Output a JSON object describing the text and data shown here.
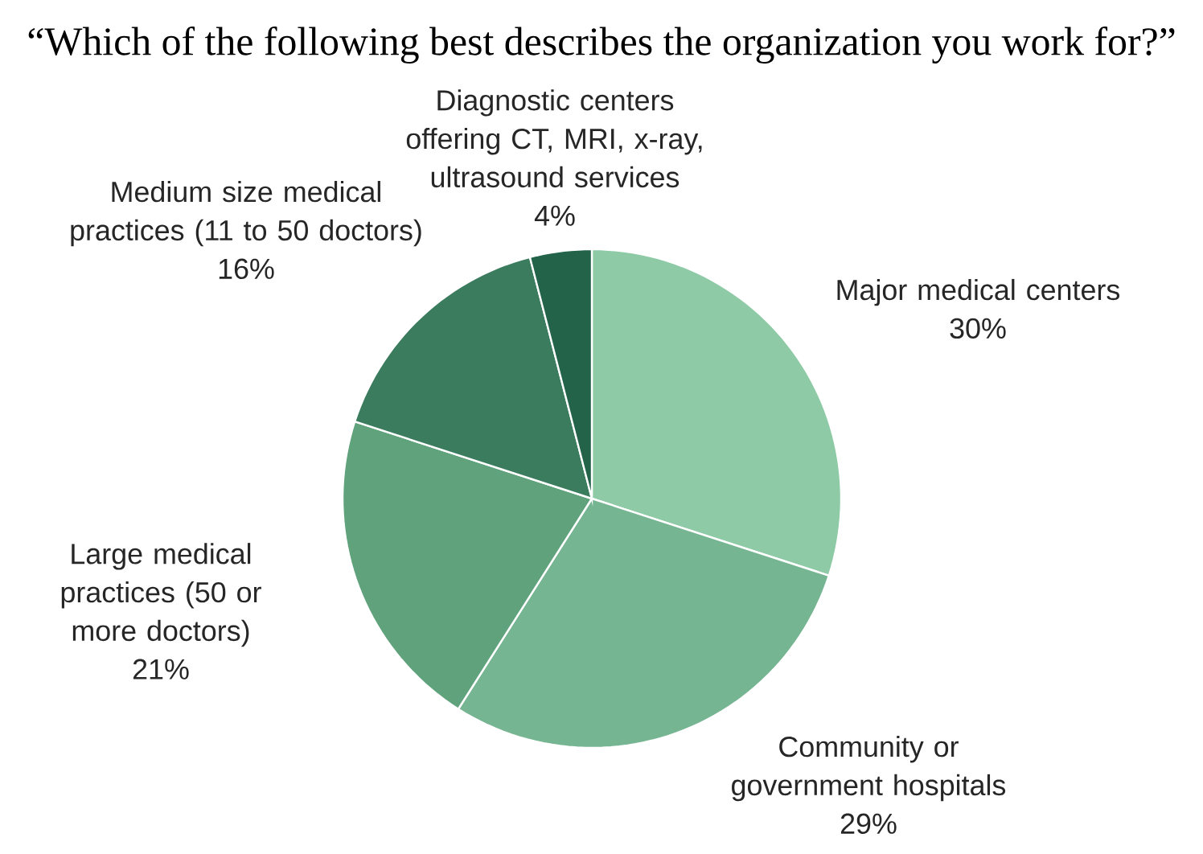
{
  "chart_data": {
    "type": "pie",
    "title": "“Which of the following best describes the organization you work for?”",
    "categories": [
      "Major medical centers",
      "Community or government hospitals",
      "Large medical practices (50 or more doctors)",
      "Medium size medical practices (11 to 50 doctors)",
      "Diagnostic centers offering CT, MRI, x-ray, ultrasound services"
    ],
    "values": [
      30,
      29,
      21,
      16,
      4
    ],
    "value_labels": [
      "30%",
      "29%",
      "21%",
      "16%",
      "4%"
    ],
    "colors": [
      "#8dcaa5",
      "#76b592",
      "#5fa27c",
      "#3b7c5e",
      "#23634a"
    ]
  }
}
